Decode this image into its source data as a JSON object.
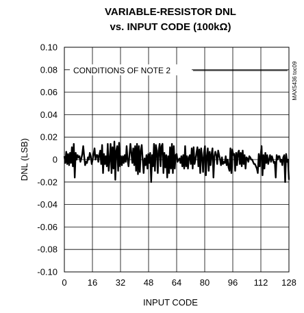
{
  "chart_data": {
    "type": "line",
    "title_lines": [
      "VARIABLE-RESISTOR DNL",
      "vs. INPUT CODE (100kΩ)"
    ],
    "xlabel": "INPUT CODE",
    "ylabel": "DNL (LSB)",
    "xlim": [
      0,
      128
    ],
    "ylim": [
      -0.1,
      0.1
    ],
    "x_ticks": [
      "0",
      "16",
      "32",
      "48",
      "64",
      "80",
      "96",
      "112",
      "128"
    ],
    "y_ticks": [
      "0.10",
      "0.08",
      "0.06",
      "0.04",
      "0.02",
      "0",
      "-0.02",
      "-0.04",
      "-0.06",
      "-0.08",
      "-0.10"
    ],
    "grid": true,
    "annotation": "CONDITIONS OF NOTE 2",
    "side_label": "MAX5436 toc09",
    "series": [
      {
        "values": [
          0.003,
          -0.003,
          0.007,
          -0.004,
          0.005,
          -0.005,
          0.006,
          -0.003,
          0.011,
          -0.006,
          0.014,
          -0.016,
          0.006,
          0.0,
          0.004,
          0.002,
          0.003,
          -0.002,
          0.001,
          0.005,
          0.012,
          0.003,
          -0.005,
          -0.002,
          -0.003,
          0.002,
          0.0,
          0.006,
          0.003,
          -0.004,
          0.0,
          0.005,
          0.01,
          0.0,
          0.004,
          0.004,
          -0.002,
          0.004,
          0.008,
          -0.004,
          0.013,
          -0.012,
          0.005,
          -0.004,
          0.003,
          -0.006,
          0.014,
          -0.01,
          0.0,
          0.014,
          -0.012,
          0.011,
          -0.008,
          0.016,
          -0.018,
          0.008,
          0.012,
          -0.01,
          0.015,
          -0.006,
          0.003,
          -0.005,
          0.003,
          -0.003,
          0.004,
          -0.002,
          0.012,
          0.0,
          -0.006,
          0.004,
          0.014,
          0.006,
          -0.003,
          0.01,
          -0.005,
          0.012,
          -0.01,
          0.014,
          -0.013,
          0.012,
          -0.011,
          0.008,
          0.013,
          0.0,
          -0.012,
          0.001,
          -0.005,
          0.004,
          -0.008,
          0.005,
          -0.003,
          0.006,
          -0.02,
          0.004,
          -0.006,
          0.014,
          -0.01,
          0.013,
          0.008,
          -0.012,
          0.008,
          0.014,
          -0.006,
          0.012,
          0.014,
          -0.012,
          0.006,
          -0.007,
          0.004,
          -0.016,
          0.003,
          -0.012,
          0.011,
          -0.008,
          0.014,
          -0.012,
          0.012,
          -0.008,
          0.004,
          0.005,
          -0.002,
          0.0,
          0.001,
          -0.003,
          0.003,
          -0.006,
          0.004,
          -0.008,
          0.012,
          -0.006,
          0.003,
          -0.008,
          0.002,
          0.004,
          -0.004,
          0.01,
          -0.008,
          0.011,
          -0.004,
          0.0,
          0.006,
          0.011,
          -0.006,
          0.009,
          -0.012,
          0.01,
          0.002,
          -0.011,
          0.006,
          0.012,
          -0.014,
          0.003,
          0.01,
          -0.01,
          0.007,
          -0.005,
          0.005,
          0.01,
          -0.016,
          0.003,
          0.007,
          0.004,
          -0.004,
          0.008,
          0.004,
          0.0,
          -0.005,
          0.002,
          -0.004,
          -0.002,
          -0.003,
          0.003,
          -0.005,
          0.0,
          -0.007,
          -0.01,
          0.01,
          -0.012,
          0.009,
          0.004,
          0.005,
          -0.01,
          0.006,
          -0.005,
          0.006,
          0.008,
          -0.004,
          0.006,
          -0.006,
          0.008,
          -0.004,
          0.004,
          -0.008,
          0.002,
          0.001,
          -0.002,
          0.003,
          0.002,
          0.0,
          0.0,
          -0.002,
          -0.004,
          -0.004,
          -0.006,
          -0.008,
          -0.012,
          0.005,
          -0.006,
          0.004,
          0.012,
          -0.014,
          0.004,
          -0.008,
          0.006,
          -0.003,
          0.004,
          -0.004,
          0.0,
          0.004,
          -0.002,
          0.003,
          0.0,
          -0.003,
          -0.002,
          -0.016,
          0.004,
          0.0,
          0.003,
          0.003,
          -0.002,
          0.0,
          -0.005,
          0.002,
          0.004,
          -0.02,
          0.005,
          -0.002,
          0.0,
          -0.018
        ]
      }
    ]
  }
}
